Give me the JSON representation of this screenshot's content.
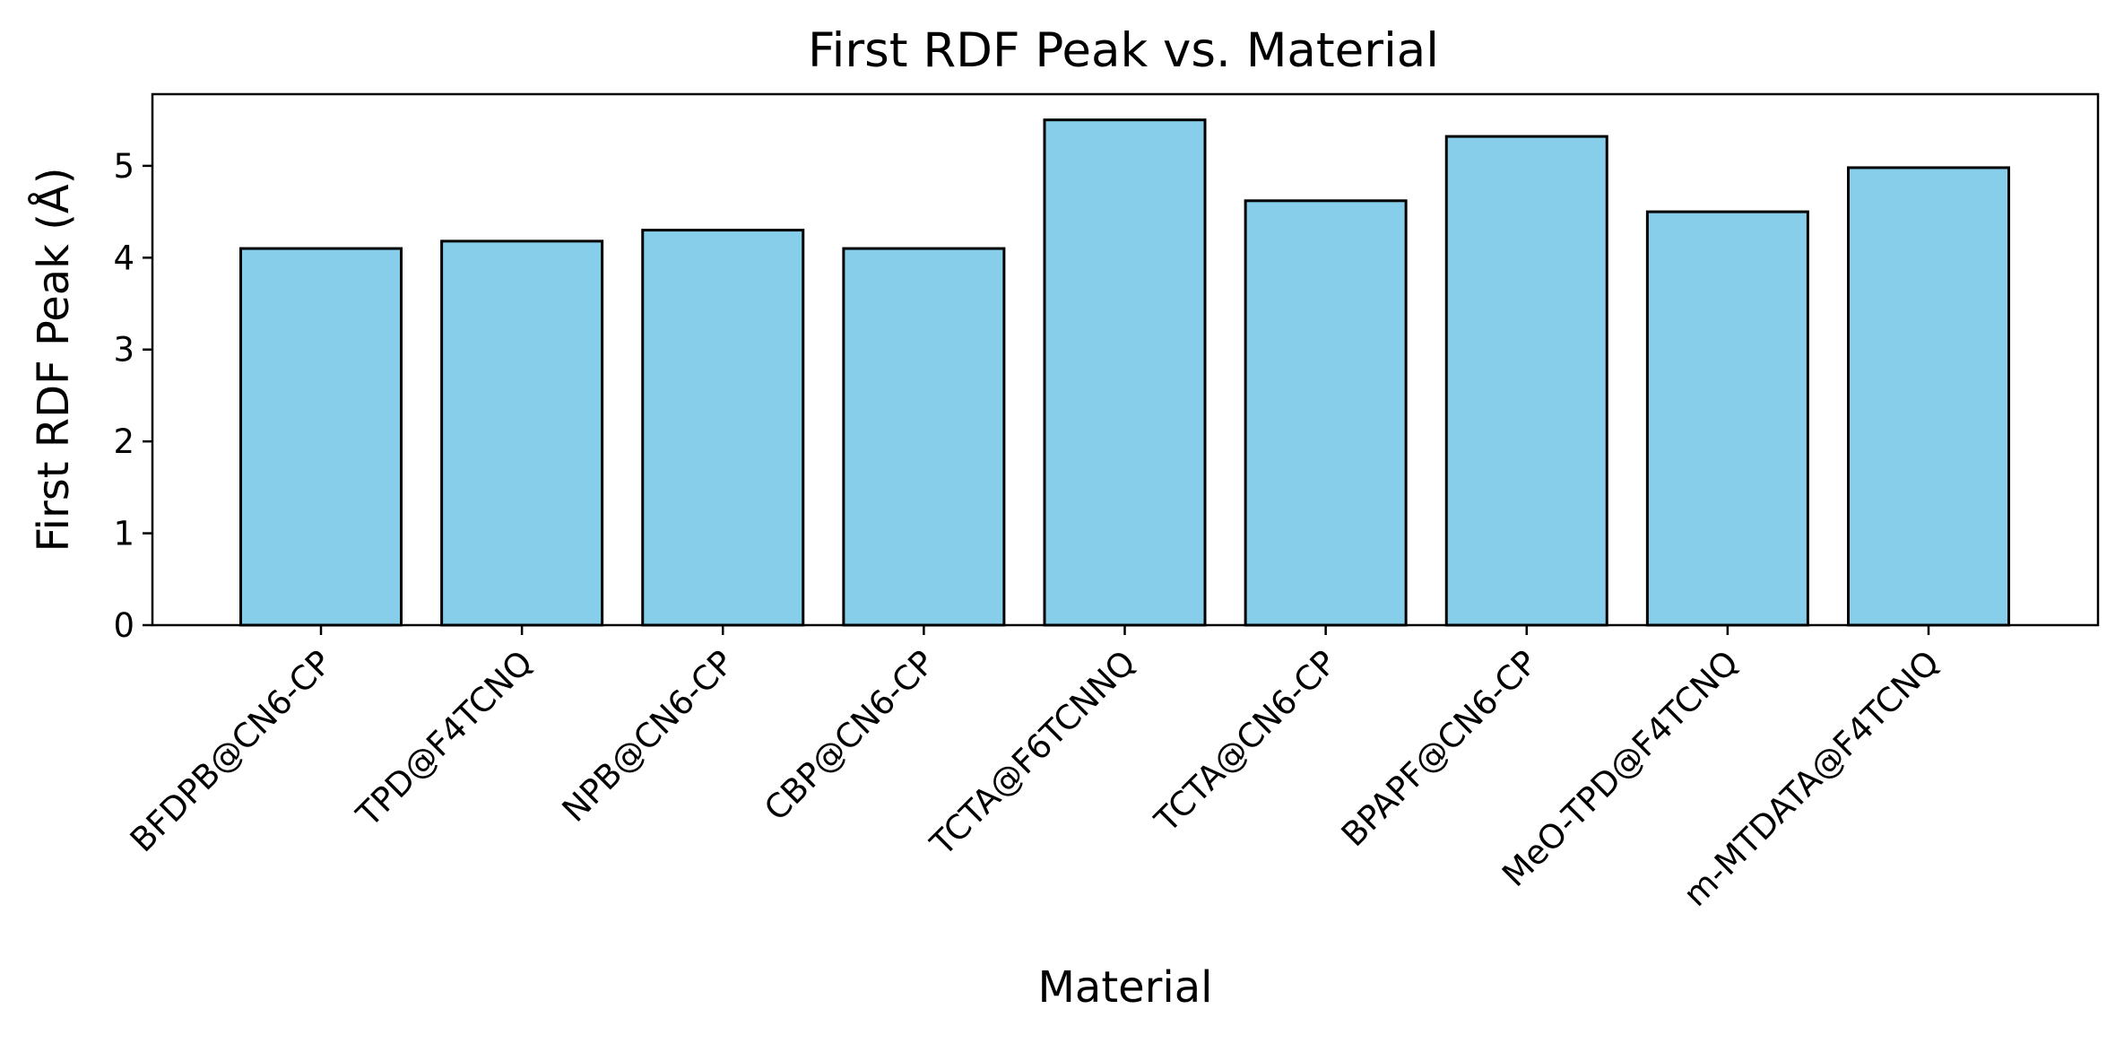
{
  "chart_data": {
    "type": "bar",
    "title": "First RDF Peak vs. Material",
    "xlabel": "Material",
    "ylabel": "First RDF Peak (Å)",
    "categories": [
      "BFDPB@CN6-CP",
      "TPD@F4TCNQ",
      "NPB@CN6-CP",
      "CBP@CN6-CP",
      "TCTA@F6TCNNQ",
      "TCTA@CN6-CP",
      "BPAPF@CN6-CP",
      "MeO-TPD@F4TCNQ",
      "m-MTDATA@F4TCNQ"
    ],
    "values": [
      4.1,
      4.18,
      4.3,
      4.1,
      5.5,
      4.62,
      5.32,
      4.5,
      4.98
    ],
    "ylim": [
      0,
      5.78
    ],
    "yticks": [
      "0",
      "1",
      "2",
      "3",
      "4",
      "5"
    ],
    "bar_color": "#87CEEB",
    "edge_color": "#000000",
    "grid": false,
    "legend": "none"
  }
}
